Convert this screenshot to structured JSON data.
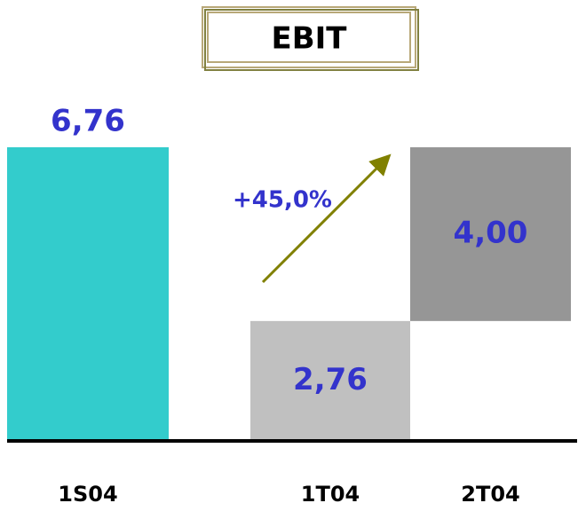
{
  "chart_data": {
    "type": "waterfall",
    "title": "EBIT",
    "categories": [
      "1S04",
      "1T04",
      "2T04"
    ],
    "values": [
      6.76,
      2.76,
      4.0
    ],
    "value_labels": [
      "6,76",
      "2,76",
      "4,00"
    ],
    "measure": [
      "absolute",
      "absolute",
      "relative"
    ],
    "colors": [
      "#33cccc",
      "#c0c0c0",
      "#969696"
    ],
    "annotation": "+45,0%"
  }
}
